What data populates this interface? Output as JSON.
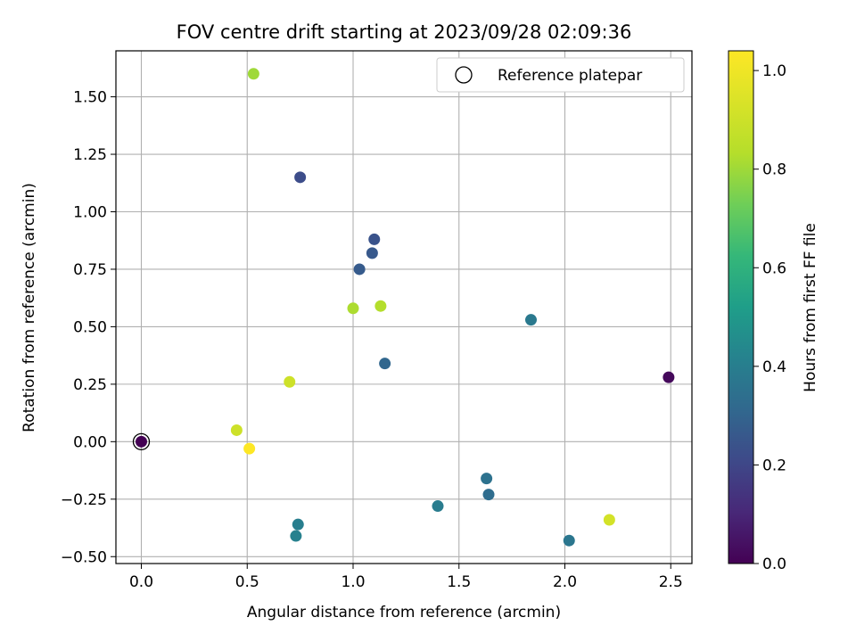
{
  "chart_data": {
    "type": "scatter",
    "title": "FOV centre drift starting at 2023/09/28 02:09:36",
    "xlabel": "Angular distance from reference (arcmin)",
    "ylabel": "Rotation from reference (arcmin)",
    "xlim": [
      -0.12,
      2.6
    ],
    "ylim": [
      -0.53,
      1.7
    ],
    "xticks": [
      "0.0",
      "0.5",
      "1.0",
      "1.5",
      "2.0",
      "2.5"
    ],
    "yticks": [
      "−0.50",
      "−0.25",
      "0.00",
      "0.25",
      "0.50",
      "0.75",
      "1.00",
      "1.25",
      "1.50"
    ],
    "grid": true,
    "legend": {
      "placement": "top-right",
      "entries": [
        "Reference platepar"
      ]
    },
    "reference_point": {
      "x": 0.0,
      "y": 0.0
    },
    "colorbar": {
      "label": "Hours from first FF file",
      "range": [
        0.0,
        1.04
      ],
      "ticks": [
        "0.0",
        "0.2",
        "0.4",
        "0.6",
        "0.8",
        "1.0"
      ],
      "colormap": "viridis"
    },
    "points": [
      {
        "x": 0.0,
        "y": 0.0,
        "hours": 0.0
      },
      {
        "x": 2.49,
        "y": 0.28,
        "hours": 0.02
      },
      {
        "x": 0.75,
        "y": 1.15,
        "hours": 0.22
      },
      {
        "x": 1.1,
        "y": 0.88,
        "hours": 0.24
      },
      {
        "x": 1.09,
        "y": 0.82,
        "hours": 0.26
      },
      {
        "x": 1.03,
        "y": 0.75,
        "hours": 0.27
      },
      {
        "x": 1.15,
        "y": 0.34,
        "hours": 0.31
      },
      {
        "x": 1.64,
        "y": -0.23,
        "hours": 0.33
      },
      {
        "x": 1.63,
        "y": -0.16,
        "hours": 0.35
      },
      {
        "x": 2.02,
        "y": -0.43,
        "hours": 0.37
      },
      {
        "x": 1.84,
        "y": 0.53,
        "hours": 0.38
      },
      {
        "x": 1.4,
        "y": -0.28,
        "hours": 0.39
      },
      {
        "x": 0.74,
        "y": -0.36,
        "hours": 0.4
      },
      {
        "x": 0.73,
        "y": -0.41,
        "hours": 0.41
      },
      {
        "x": 0.53,
        "y": 1.6,
        "hours": 0.8
      },
      {
        "x": 1.0,
        "y": 0.58,
        "hours": 0.82
      },
      {
        "x": 1.13,
        "y": 0.59,
        "hours": 0.83
      },
      {
        "x": 0.7,
        "y": 0.26,
        "hours": 0.9
      },
      {
        "x": 0.45,
        "y": 0.05,
        "hours": 0.9
      },
      {
        "x": 2.21,
        "y": -0.34,
        "hours": 0.92
      },
      {
        "x": 0.51,
        "y": -0.03,
        "hours": 1.04
      }
    ]
  }
}
